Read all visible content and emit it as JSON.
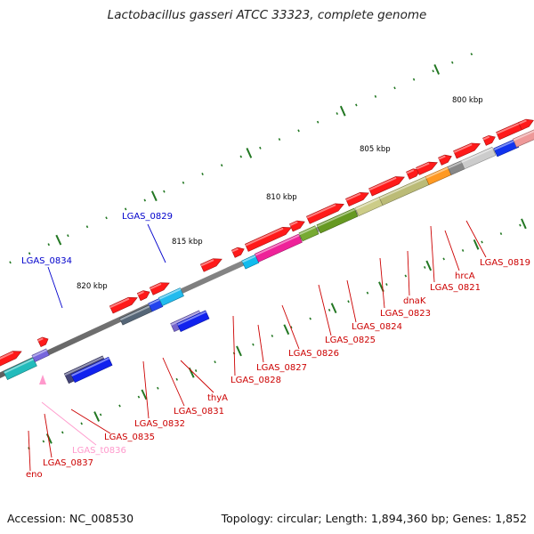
{
  "title": "Lactobacillus gasseri ATCC 33323, complete genome",
  "footer": {
    "accession": "Accession: NC_008530",
    "summary": "Topology: circular; Length: 1,894,360 bp; Genes: 1,852"
  },
  "colors": {
    "backbone": "#8c8c8c",
    "forward_gene": "#ff0000",
    "reverse_label": "#0000cc",
    "forward_label": "#cc0000",
    "trna_label": "#ff99cc",
    "tick": "#227722"
  },
  "scale_labels": [
    "800 kbp",
    "805 kbp",
    "810 kbp",
    "815 kbp",
    "820 kbp"
  ],
  "gene_labels": [
    {
      "text": "LGAS_0834",
      "strand": "reverse"
    },
    {
      "text": "LGAS_0829",
      "strand": "reverse"
    },
    {
      "text": "LGAS_0819",
      "strand": "forward"
    },
    {
      "text": "hrcA",
      "strand": "forward"
    },
    {
      "text": "LGAS_0821",
      "strand": "forward"
    },
    {
      "text": "dnaK",
      "strand": "forward"
    },
    {
      "text": "LGAS_0823",
      "strand": "forward"
    },
    {
      "text": "LGAS_0824",
      "strand": "forward"
    },
    {
      "text": "LGAS_0825",
      "strand": "forward"
    },
    {
      "text": "LGAS_0826",
      "strand": "forward"
    },
    {
      "text": "LGAS_0827",
      "strand": "forward"
    },
    {
      "text": "LGAS_0828",
      "strand": "forward"
    },
    {
      "text": "thyA",
      "strand": "forward"
    },
    {
      "text": "LGAS_0831",
      "strand": "forward"
    },
    {
      "text": "LGAS_0832",
      "strand": "forward"
    },
    {
      "text": "LGAS_0835",
      "strand": "forward"
    },
    {
      "text": "LGAS_t0836",
      "strand": "trna"
    },
    {
      "text": "LGAS_0837",
      "strand": "forward"
    },
    {
      "text": "eno",
      "strand": "forward"
    }
  ]
}
